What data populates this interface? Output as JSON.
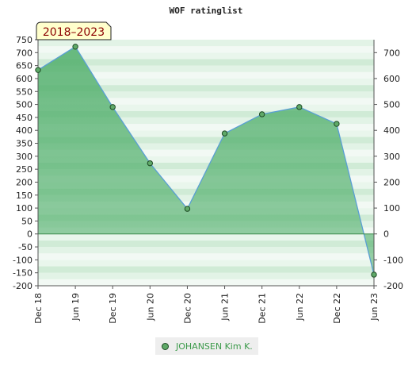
{
  "chart_data": {
    "type": "area",
    "title": "WOF ratinglist",
    "period_badge": "2018–2023",
    "categories": [
      "Dec 18",
      "Jun 19",
      "Dec 19",
      "Jun 20",
      "Dec 20",
      "Jun 21",
      "Dec 21",
      "Jun 22",
      "Dec 22",
      "Jun 23"
    ],
    "series": [
      {
        "name": "JOHANSEN Kim K.",
        "values": [
          633,
          723,
          490,
          273,
          97,
          388,
          462,
          490,
          425,
          -157
        ]
      }
    ],
    "y_left": {
      "ylim": [
        -200,
        750
      ],
      "ticks": [
        "750",
        "700",
        "650",
        "600",
        "550",
        "500",
        "450",
        "400",
        "350",
        "300",
        "250",
        "200",
        "150",
        "100",
        "50",
        "0",
        "-50",
        "-100",
        "-150",
        "-200"
      ]
    },
    "y_right": {
      "ylim": [
        -200,
        750
      ],
      "ticks": [
        "700",
        "600",
        "500",
        "400",
        "300",
        "200",
        "100",
        "0",
        "-100",
        "-200"
      ]
    },
    "grid": "banded",
    "legend_placement": "bottom",
    "colors": {
      "fill": "#4fae6a",
      "line": "#5a9fd4",
      "marker": "#5fa968",
      "badge_bg": "#ffffcc",
      "badge_text": "#8b0000",
      "legend_text": "#3b9a4a"
    }
  }
}
